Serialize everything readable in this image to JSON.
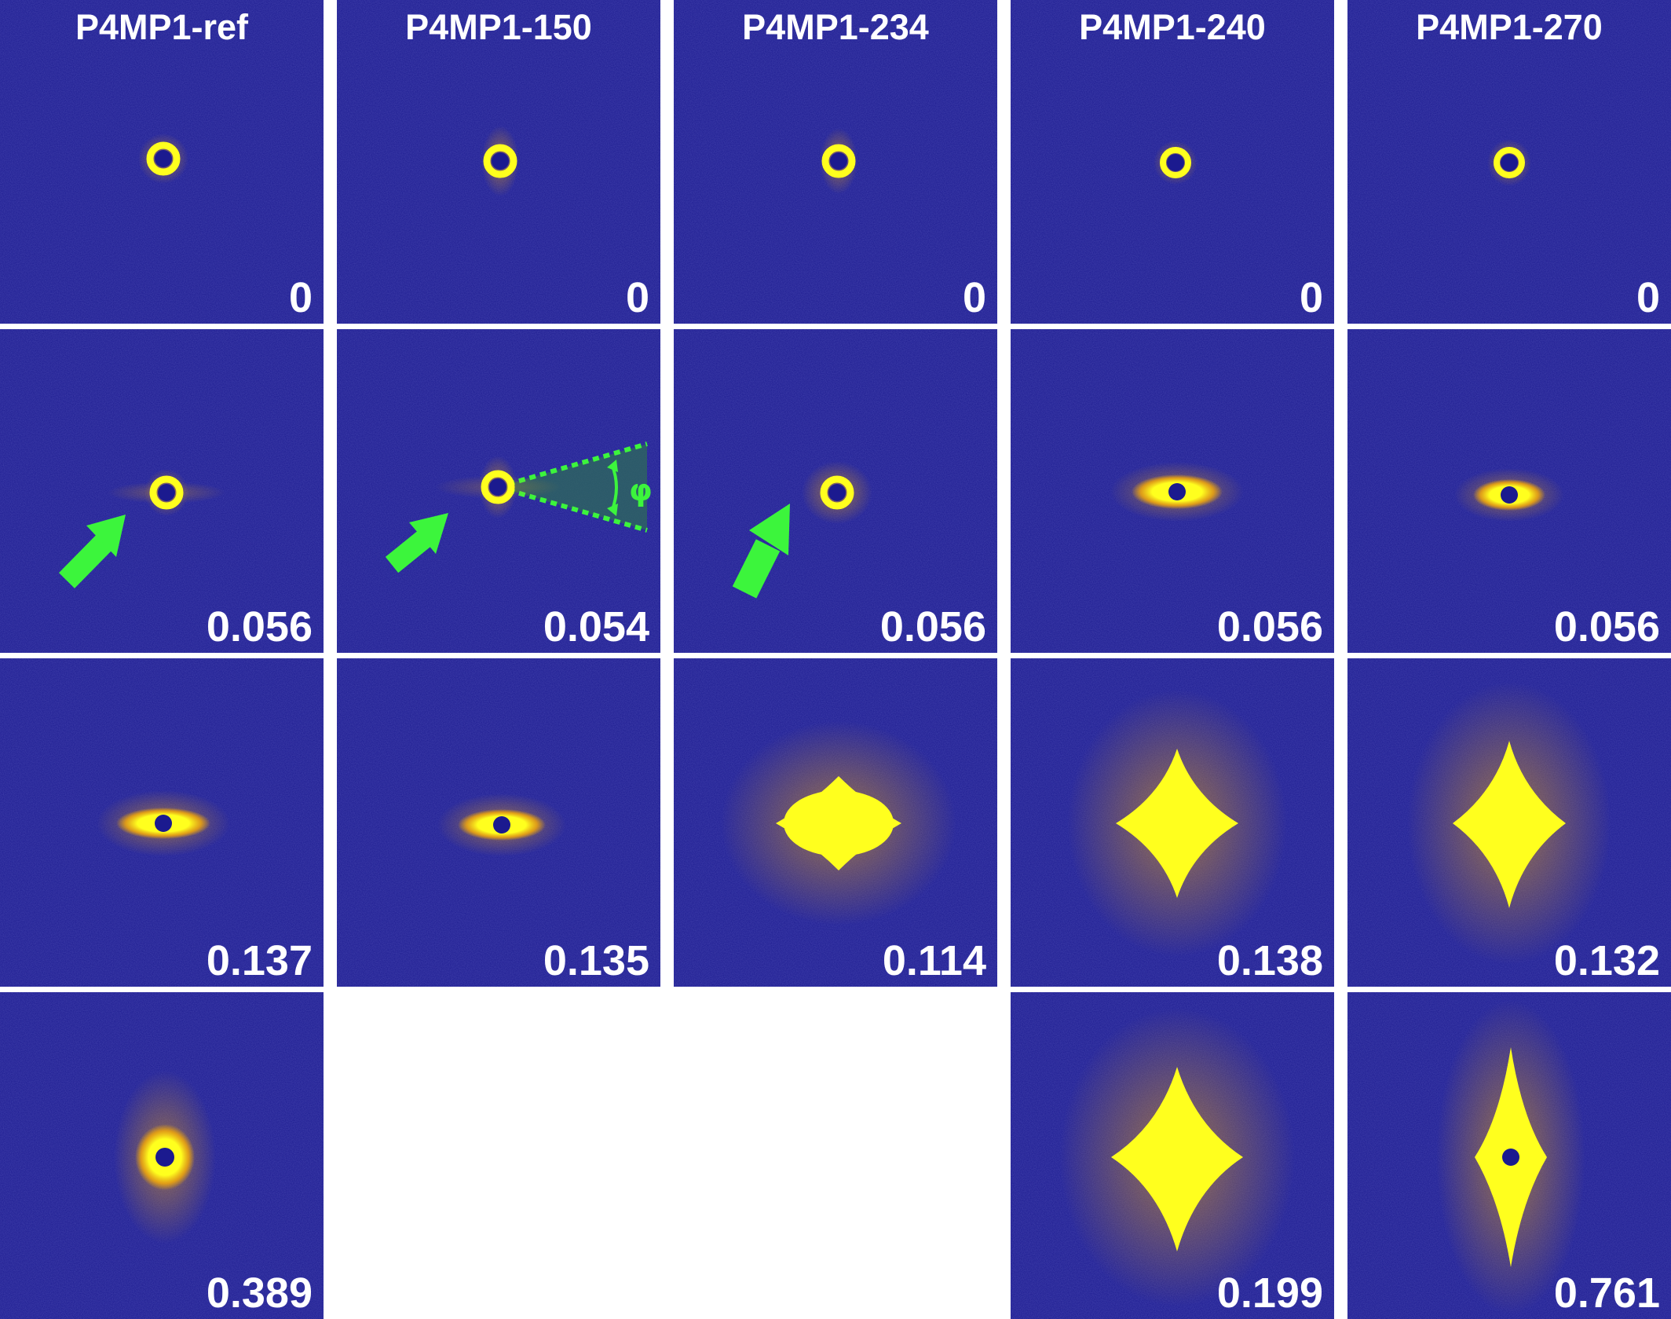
{
  "samples": [
    "P4MP1-ref",
    "P4MP1-150",
    "P4MP1-234",
    "P4MP1-240",
    "P4MP1-270"
  ],
  "strain_values": [
    [
      "0",
      "0",
      "0",
      "0",
      "0"
    ],
    [
      "0.056",
      "0.054",
      "0.056",
      "0.056",
      "0.056"
    ],
    [
      "0.137",
      "0.135",
      "0.114",
      "0.138",
      "0.132"
    ],
    [
      "0.389",
      "",
      "",
      "0.199",
      "0.761"
    ]
  ],
  "annotation_symbol": "φ",
  "colors": {
    "background": "#1b1a8f",
    "scattering": "#ffff1e",
    "scattering_edge": "#f2a80a",
    "arrow": "#3cf53c",
    "sector_line": "#3cf53c",
    "sector_fill": "#2e6b5a",
    "label": "#ffffff",
    "grid_gap": "#ffffff"
  },
  "icons": {
    "arrow": "green-arrow-icon",
    "sector": "azimuthal-sector-icon"
  }
}
